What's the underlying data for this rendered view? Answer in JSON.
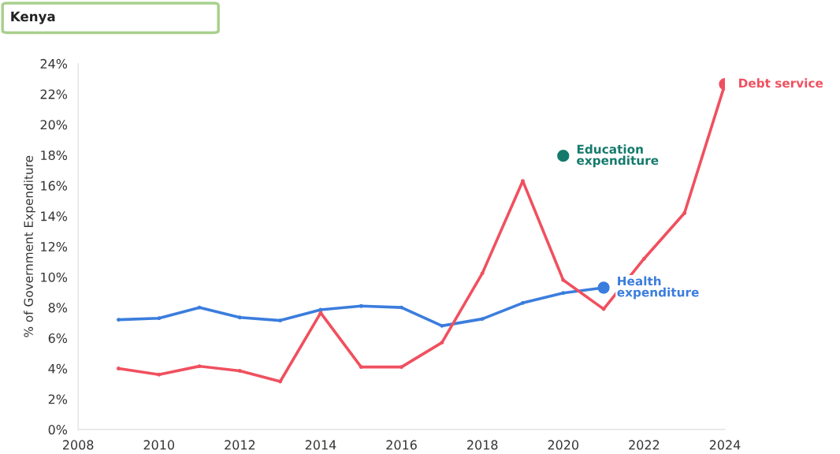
{
  "chart_data": {
    "type": "line",
    "title": "Kenya",
    "ylabel": "% of Government Expenditure",
    "xlim": [
      2008,
      2024
    ],
    "xticks": [
      2008,
      2010,
      2012,
      2014,
      2016,
      2018,
      2020,
      2022,
      2024
    ],
    "ylim": [
      0,
      24
    ],
    "yticks": [
      {
        "value": 0,
        "label": "0%"
      },
      {
        "value": 2,
        "label": "2%"
      },
      {
        "value": 4,
        "label": "4%"
      },
      {
        "value": 6,
        "label": "6%"
      },
      {
        "value": 8,
        "label": "8%"
      },
      {
        "value": 10,
        "label": "10%"
      },
      {
        "value": 12,
        "label": "12%"
      },
      {
        "value": 14,
        "label": "14%"
      },
      {
        "value": 16,
        "label": "16%"
      },
      {
        "value": 18,
        "label": "18%"
      },
      {
        "value": 20,
        "label": "20%"
      },
      {
        "value": 22,
        "label": "22%"
      },
      {
        "value": 24,
        "label": "24%"
      }
    ],
    "grid": false,
    "marker": "circle",
    "line_style": "solid",
    "series": [
      {
        "name": "Health\nexpenditure",
        "color": "#3b7ddd",
        "x": [
          2009,
          2010,
          2011,
          2012,
          2013,
          2014,
          2015,
          2016,
          2017,
          2018,
          2019,
          2020,
          2021
        ],
        "values": [
          7.2,
          7.3,
          8.0,
          7.35,
          7.15,
          7.85,
          8.1,
          8.0,
          6.8,
          7.25,
          8.3,
          8.95,
          9.3
        ]
      },
      {
        "name": "Debt service",
        "color": "#f0505f",
        "x": [
          2009,
          2010,
          2011,
          2012,
          2013,
          2014,
          2015,
          2016,
          2017,
          2018,
          2019,
          2020,
          2021,
          2022,
          2023,
          2024
        ],
        "values": [
          4.0,
          3.6,
          4.15,
          3.85,
          3.15,
          7.65,
          4.1,
          4.1,
          5.7,
          10.25,
          16.3,
          9.8,
          7.9,
          11.2,
          14.2,
          22.65
        ]
      },
      {
        "name": "Education\nexpenditure",
        "color": "#147a6b",
        "type": "scatter",
        "x": [
          2020
        ],
        "values": [
          17.95
        ]
      }
    ]
  }
}
